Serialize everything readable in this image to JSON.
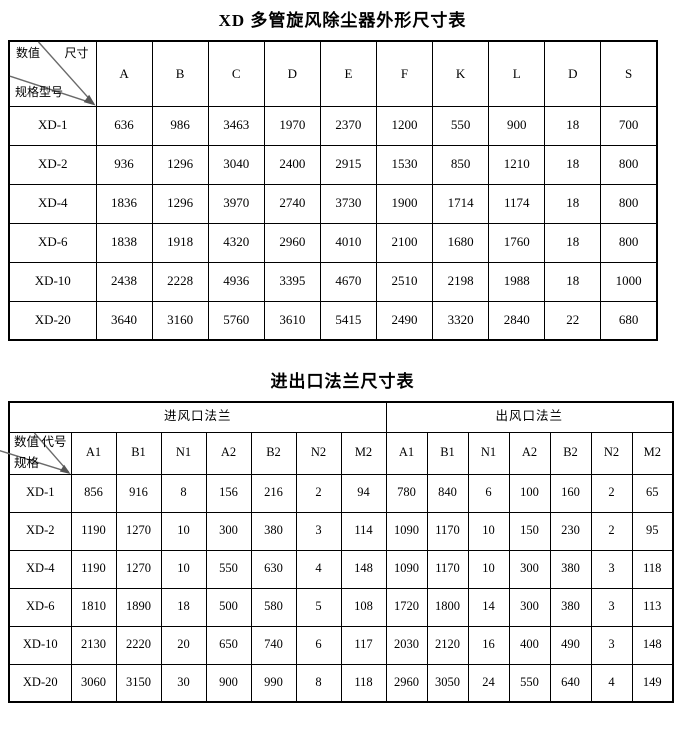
{
  "table1": {
    "title": "XD 多管旋风除尘器外形尺寸表",
    "corner": {
      "top_left": "数值",
      "top_right": "尺寸",
      "bottom_left": "规格型号"
    },
    "columns": [
      "A",
      "B",
      "C",
      "D",
      "E",
      "F",
      "K",
      "L",
      "D",
      "S"
    ],
    "rows": [
      {
        "model": "XD-1",
        "values": [
          636,
          986,
          3463,
          1970,
          2370,
          1200,
          550,
          900,
          18,
          700
        ]
      },
      {
        "model": "XD-2",
        "values": [
          936,
          1296,
          3040,
          2400,
          2915,
          1530,
          850,
          1210,
          18,
          800
        ]
      },
      {
        "model": "XD-4",
        "values": [
          1836,
          1296,
          3970,
          2740,
          3730,
          1900,
          1714,
          1174,
          18,
          800
        ]
      },
      {
        "model": "XD-6",
        "values": [
          1838,
          1918,
          4320,
          2960,
          4010,
          2100,
          1680,
          1760,
          18,
          800
        ]
      },
      {
        "model": "XD-10",
        "values": [
          2438,
          2228,
          4936,
          3395,
          4670,
          2510,
          2198,
          1988,
          18,
          1000
        ]
      },
      {
        "model": "XD-20",
        "values": [
          3640,
          3160,
          5760,
          3610,
          5415,
          2490,
          3320,
          2840,
          22,
          680
        ]
      }
    ]
  },
  "table2": {
    "title": "进出口法兰尺寸表",
    "groups": {
      "inlet": "进风口法兰",
      "outlet": "出风口法兰"
    },
    "corner": {
      "top_left": "数值",
      "top_right": "代号",
      "bottom_left": "规格"
    },
    "columns": [
      "A1",
      "B1",
      "N1",
      "A2",
      "B2",
      "N2",
      "M2",
      "A1",
      "B1",
      "N1",
      "A2",
      "B2",
      "N2",
      "M2"
    ],
    "rows": [
      {
        "model": "XD-1",
        "values": [
          856,
          916,
          8,
          156,
          216,
          2,
          94,
          780,
          840,
          6,
          100,
          160,
          2,
          65
        ]
      },
      {
        "model": "XD-2",
        "values": [
          1190,
          1270,
          10,
          300,
          380,
          3,
          114,
          1090,
          1170,
          10,
          150,
          230,
          2,
          95
        ]
      },
      {
        "model": "XD-4",
        "values": [
          1190,
          1270,
          10,
          550,
          630,
          4,
          148,
          1090,
          1170,
          10,
          300,
          380,
          3,
          118
        ]
      },
      {
        "model": "XD-6",
        "values": [
          1810,
          1890,
          18,
          500,
          580,
          5,
          108,
          1720,
          1800,
          14,
          300,
          380,
          3,
          113
        ]
      },
      {
        "model": "XD-10",
        "values": [
          2130,
          2220,
          20,
          650,
          740,
          6,
          117,
          2030,
          2120,
          16,
          400,
          490,
          3,
          148
        ]
      },
      {
        "model": "XD-20",
        "values": [
          3060,
          3150,
          30,
          900,
          990,
          8,
          118,
          2960,
          3050,
          24,
          550,
          640,
          4,
          149
        ]
      }
    ]
  }
}
